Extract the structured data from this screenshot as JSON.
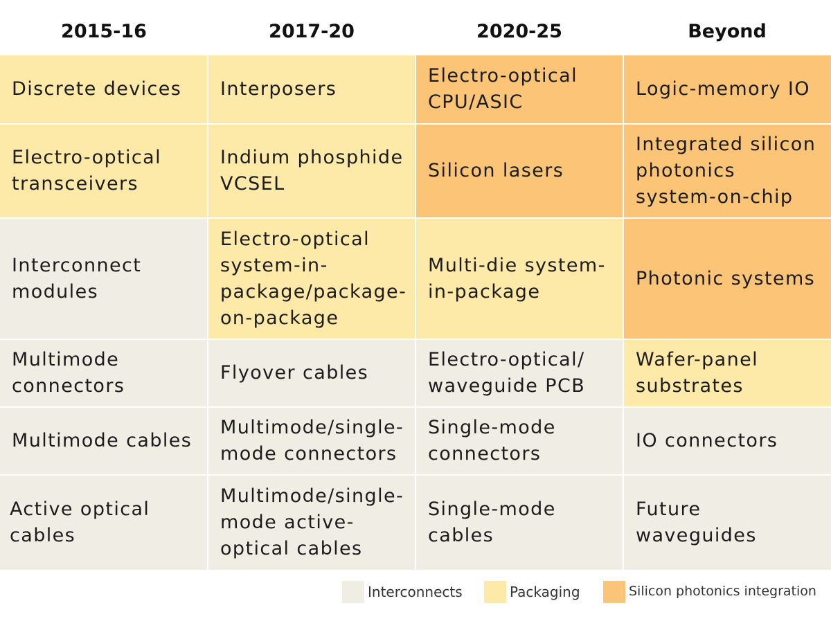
{
  "columns": [
    "2015-16",
    "2017-20",
    "2020-25",
    "Beyond"
  ],
  "colors": {
    "interconnects": "#f0ede4",
    "packaging": "#fde9a8",
    "silicon_photonics_integration": "#fcc477"
  },
  "rows": [
    {
      "cells": [
        {
          "text": "Discrete devices",
          "category": "packaging"
        },
        {
          "text": "Interposers",
          "category": "packaging"
        },
        {
          "text": "Electro-optical CPU/ASIC",
          "category": "silicon"
        },
        {
          "text": "Logic-memory IO",
          "category": "silicon"
        }
      ]
    },
    {
      "cells": [
        {
          "text": "Electro-optical transceivers",
          "category": "packaging"
        },
        {
          "text": "Indium phosphide VCSEL",
          "category": "packaging"
        },
        {
          "text": "Silicon lasers",
          "category": "silicon"
        },
        {
          "text": "Integrated silicon photonics system-on-chip",
          "category": "silicon"
        }
      ]
    },
    {
      "cells": [
        {
          "text": "Interconnect modules",
          "category": "interconnects"
        },
        {
          "text": "Electro-optical system-in-package/package-on-package",
          "category": "packaging"
        },
        {
          "text": "Multi-die system-in-package",
          "category": "packaging"
        },
        {
          "text": "Photonic systems",
          "category": "silicon"
        }
      ]
    },
    {
      "cells": [
        {
          "text": "Multimode connectors",
          "category": "interconnects"
        },
        {
          "text": "Flyover cables",
          "category": "interconnects"
        },
        {
          "text": "Electro-optical/ waveguide PCB",
          "category": "interconnects"
        },
        {
          "text": "Wafer-panel substrates",
          "category": "packaging"
        }
      ]
    },
    {
      "cells": [
        {
          "text": "Multimode cables",
          "category": "interconnects"
        },
        {
          "text": "Multimode/single-mode connectors",
          "category": "interconnects"
        },
        {
          "text": "Single-mode connectors",
          "category": "interconnects"
        },
        {
          "text": "IO connectors",
          "category": "interconnects"
        }
      ]
    },
    {
      "cells": [
        {
          "text": "Active optical cables",
          "category": "interconnects"
        },
        {
          "text": "Multimode/single-mode active-optical cables",
          "category": "interconnects"
        },
        {
          "text": "Single-mode cables",
          "category": "interconnects"
        },
        {
          "text": "Future waveguides",
          "category": "interconnects"
        }
      ]
    }
  ],
  "legend": {
    "interconnects": "Interconnects",
    "packaging": "Packaging",
    "silicon": "Silicon photonics integration"
  }
}
